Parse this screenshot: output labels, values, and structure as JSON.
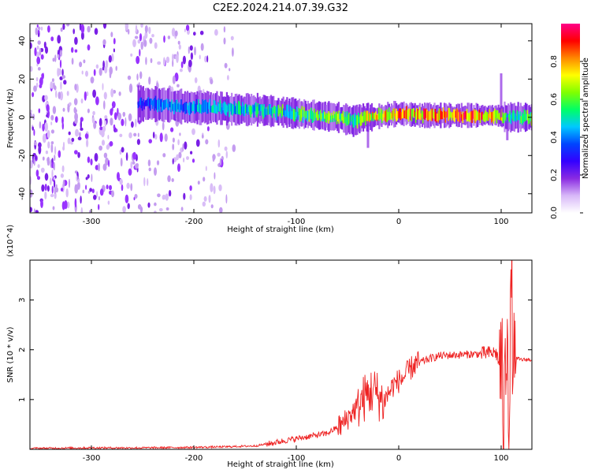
{
  "title": "C2E2.2024.214.07.39.G32",
  "chart_data": [
    {
      "type": "heatmap",
      "title": "C2E2.2024.214.07.39.G32",
      "xlabel": "Height of straight line (km)",
      "ylabel": "Frequency (Hz)",
      "xlim": [
        -360,
        130
      ],
      "ylim": [
        -50,
        49
      ],
      "xticks": [
        -300,
        -200,
        -100,
        0,
        100
      ],
      "yticks": [
        40,
        20,
        0,
        -20,
        -40
      ],
      "colorbar": {
        "label": "Normalized spectral amplitude",
        "range": [
          0,
          1
        ],
        "ticks": [
          0.0,
          0.2,
          0.4,
          0.6,
          0.8
        ],
        "colormap": [
          "#ffffff",
          "#d8b8f8",
          "#8a2be2",
          "#3300ff",
          "#0044ff",
          "#00c8ff",
          "#00ff66",
          "#80ff00",
          "#ffff00",
          "#ff8800",
          "#ff0000",
          "#ff0088"
        ]
      },
      "signal_track": {
        "x": [
          -255,
          -240,
          -220,
          -200,
          -180,
          -160,
          -140,
          -120,
          -100,
          -80,
          -60,
          -45,
          -35,
          -25,
          -15,
          0,
          20,
          40,
          60,
          80,
          95,
          105,
          110,
          120,
          130
        ],
        "center_freq": [
          7,
          7,
          6,
          5,
          5,
          4,
          4,
          3,
          2,
          1,
          0,
          -2,
          0,
          0,
          1,
          2,
          1,
          1,
          1,
          1,
          1,
          0,
          0,
          0,
          0
        ],
        "amplitude": [
          0.35,
          0.4,
          0.42,
          0.45,
          0.48,
          0.5,
          0.52,
          0.55,
          0.58,
          0.6,
          0.62,
          0.55,
          0.7,
          0.75,
          0.8,
          0.85,
          0.85,
          0.87,
          0.88,
          0.9,
          0.85,
          0.6,
          0.5,
          0.6,
          0.62
        ]
      },
      "noise_region_x": [
        -360,
        -160
      ]
    },
    {
      "type": "line",
      "xlabel": "Height of straight line (km)",
      "ylabel": "SNR (10 * v/v)",
      "y_multiplier": "(x10^4)",
      "xlim": [
        -360,
        130
      ],
      "ylim": [
        0,
        3.8
      ],
      "xticks": [
        -300,
        -200,
        -100,
        0,
        100
      ],
      "yticks": [
        1,
        2,
        3
      ],
      "color": "#ee2222",
      "x": [
        -360,
        -300,
        -250,
        -200,
        -170,
        -140,
        -125,
        -110,
        -90,
        -70,
        -55,
        -45,
        -35,
        -25,
        -15,
        -5,
        5,
        15,
        30,
        40,
        60,
        80,
        95,
        100,
        103,
        106,
        108,
        110,
        112,
        115,
        120,
        130
      ],
      "y": [
        0.02,
        0.03,
        0.03,
        0.04,
        0.05,
        0.07,
        0.12,
        0.18,
        0.25,
        0.32,
        0.5,
        0.75,
        1.0,
        1.2,
        0.95,
        1.3,
        1.45,
        1.7,
        1.82,
        1.88,
        1.9,
        1.92,
        1.94,
        1.6,
        0.6,
        3.0,
        0.2,
        3.7,
        1.3,
        1.82,
        1.8,
        1.8
      ]
    }
  ]
}
